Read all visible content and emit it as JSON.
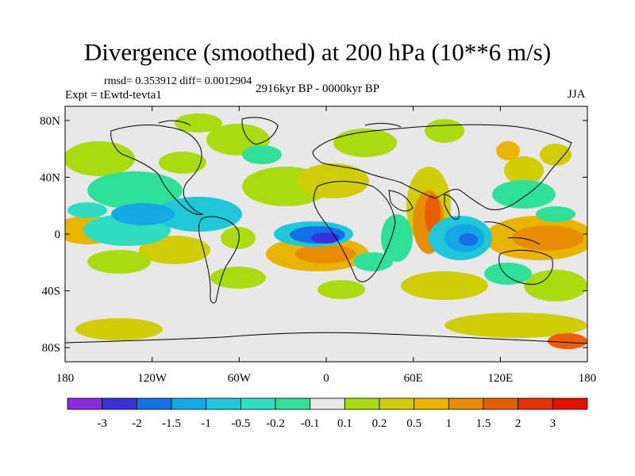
{
  "title": "Divergence (smoothed) at 200 hPa (10**6 m/s)",
  "stats": "rmsd= 0.353912  diff= 0.0012904",
  "experiment": "Expt = tEwtd-tevta1",
  "period": "2916kyr BP - 0000kyr BP",
  "season": "JJA",
  "lat_ticks": [
    "80N",
    "40N",
    "0",
    "40S",
    "80S"
  ],
  "lon_ticks": [
    "180",
    "120W",
    "60W",
    "0",
    "60E",
    "120E",
    "180"
  ],
  "colorbar": {
    "labels": [
      "-3",
      "-2",
      "-1.5",
      "-1",
      "-0.5",
      "-0.2",
      "-0.1",
      "0.1",
      "0.2",
      "0.5",
      "1",
      "1.5",
      "2",
      "3"
    ],
    "colors": [
      "#8a2be2",
      "#3a30e0",
      "#1470e6",
      "#16a8e6",
      "#1ec8d8",
      "#2edcc0",
      "#30e098",
      "#e8e8e8",
      "#a8dc10",
      "#d0cc08",
      "#e8b400",
      "#e88c00",
      "#e85e00",
      "#e83000",
      "#e80e00"
    ]
  },
  "colors": {
    "background": "#e8e8e8",
    "coastline": "#000000"
  }
}
